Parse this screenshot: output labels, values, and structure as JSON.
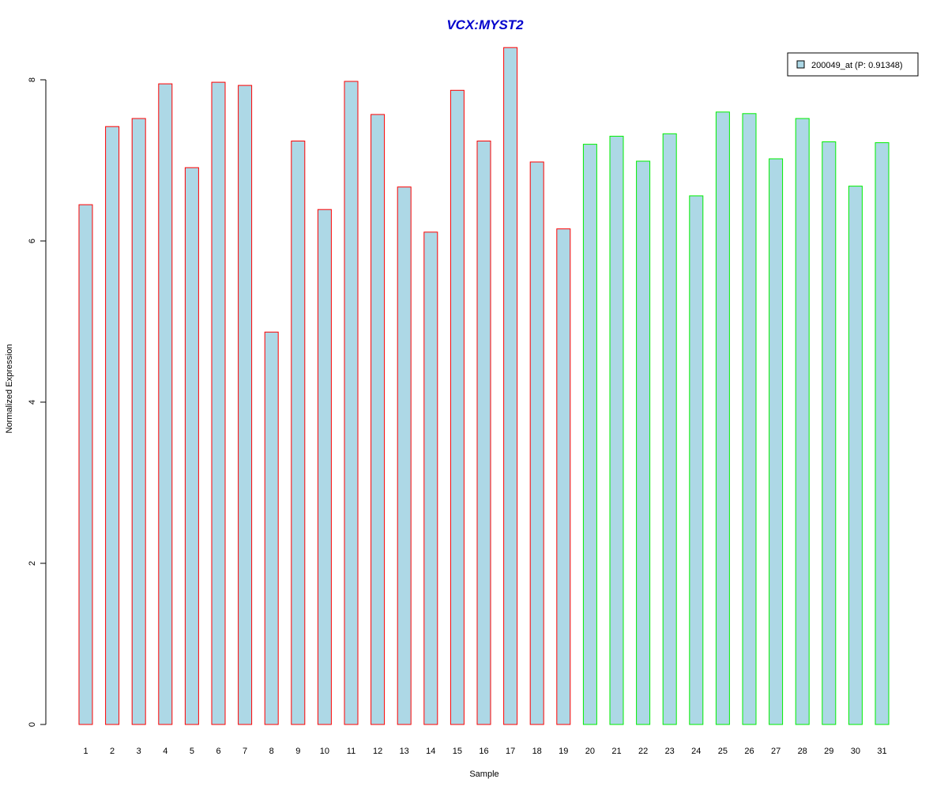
{
  "colors": {
    "background": "#ffffff",
    "title": "#0000cc",
    "bar_fill": "#add8e6",
    "group1_border": "#ff0000",
    "group2_border": "#00ee00",
    "axis": "#000000"
  },
  "chart_data": {
    "type": "bar",
    "title": "VCX:MYST2",
    "xlabel": "Sample",
    "ylabel": "Normalized Expression",
    "ylim": [
      0,
      8.4
    ],
    "yticks": [
      0,
      2,
      4,
      6,
      8
    ],
    "grid": false,
    "legend": {
      "position": "top-right",
      "entries": [
        "200049_at (P: 0.91348)"
      ]
    },
    "categories": [
      "1",
      "2",
      "3",
      "4",
      "5",
      "6",
      "7",
      "8",
      "9",
      "10",
      "11",
      "12",
      "13",
      "14",
      "15",
      "16",
      "17",
      "18",
      "19",
      "20",
      "21",
      "22",
      "23",
      "24",
      "25",
      "26",
      "27",
      "28",
      "29",
      "30",
      "31"
    ],
    "series": [
      {
        "name": "200049_at (P: 0.91348)",
        "values": [
          6.45,
          7.42,
          7.52,
          7.95,
          6.91,
          7.97,
          7.93,
          4.87,
          7.24,
          6.39,
          7.98,
          7.57,
          6.67,
          6.11,
          7.87,
          7.24,
          8.4,
          6.98,
          6.15,
          7.2,
          7.3,
          6.99,
          7.33,
          6.56,
          7.6,
          7.58,
          7.02,
          7.52,
          7.23,
          6.68,
          7.22
        ],
        "groups": [
          "1",
          "1",
          "1",
          "1",
          "1",
          "1",
          "1",
          "1",
          "1",
          "1",
          "1",
          "1",
          "1",
          "1",
          "1",
          "1",
          "1",
          "1",
          "1",
          "2",
          "2",
          "2",
          "2",
          "2",
          "2",
          "2",
          "2",
          "2",
          "2",
          "2",
          "2"
        ]
      }
    ]
  }
}
